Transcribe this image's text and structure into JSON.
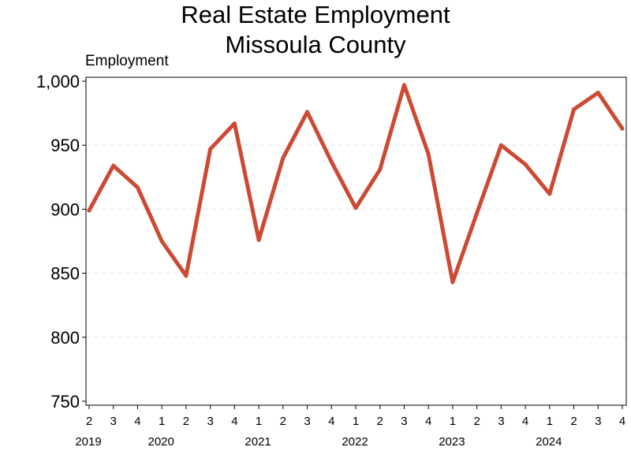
{
  "chart_data": {
    "type": "line",
    "title": [
      "Real Estate Employment",
      "Missoula County"
    ],
    "ylabel": "Employment",
    "xlabel": "",
    "ylim": [
      750,
      1000
    ],
    "yticks": [
      750,
      800,
      850,
      900,
      950,
      1000
    ],
    "ytick_labels": [
      "750",
      "800",
      "850",
      "900",
      "950",
      "1,000"
    ],
    "grid": "horizontal dashed",
    "x_quarters": [
      "2",
      "3",
      "4",
      "1",
      "2",
      "3",
      "4",
      "1",
      "2",
      "3",
      "4",
      "1",
      "2",
      "3",
      "4",
      "1",
      "2",
      "3",
      "4",
      "1",
      "2",
      "3",
      "4"
    ],
    "x_years": [
      {
        "label": "2019",
        "index": 0
      },
      {
        "label": "2020",
        "index": 3
      },
      {
        "label": "2021",
        "index": 7
      },
      {
        "label": "2022",
        "index": 11
      },
      {
        "label": "2023",
        "index": 15
      },
      {
        "label": "2024",
        "index": 19
      }
    ],
    "series": [
      {
        "color": "#cc4a33",
        "values": [
          899,
          934,
          917,
          875,
          848,
          947,
          967,
          876,
          940,
          976,
          937,
          901,
          931,
          997,
          943,
          843,
          897,
          950,
          935,
          912,
          978,
          991,
          963
        ]
      }
    ]
  }
}
